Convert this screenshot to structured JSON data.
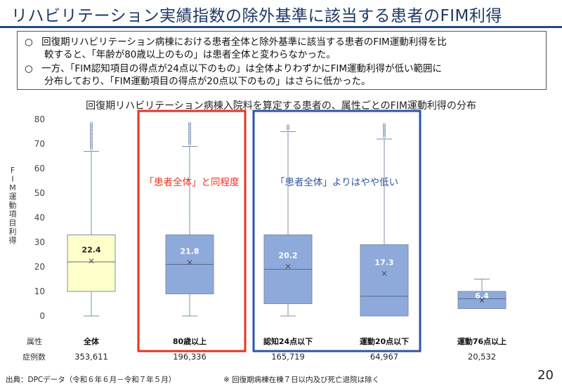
{
  "title": "リハビリテーション実績指数の除外基準に該当する患者のFIM利得",
  "summary": {
    "bullet": "○",
    "lines": [
      "回復期リハビリテーション病棟における患者全体と除外基準に該当する患者のFIM運動利得を比",
      "較すると、「年齢が80歳以上のもの」は患者全体と変わらなかった。",
      "一方、「FIM認知項目の得点が24点以下のもの」は全体よりわずかにFIM運動利得が低い範囲に",
      "分布しており、「FIM運動項目の得点が20点以下のもの」はさらに低かった。"
    ]
  },
  "chart_data": {
    "type": "box",
    "title": "回復期リハビリテーション病棟入院料を算定する患者の、属性ごとのFIM運動利得の分布",
    "ylabel": "FIM運動項目利得",
    "ylim": [
      -3,
      80
    ],
    "yticks": [
      0,
      10,
      20,
      30,
      40,
      50,
      60,
      70,
      80
    ],
    "grid": false,
    "row_labels": {
      "attribute": "属性",
      "cases": "症例数"
    },
    "categories": [
      "全体",
      "80歳以上",
      "認知24点以下",
      "運動20点以下",
      "運動76点以上"
    ],
    "cases": [
      "353,611",
      "196,336",
      "165,719",
      "64,967",
      "20,532"
    ],
    "boxes": [
      {
        "whisker_low": 0,
        "q1": 10,
        "median": 22,
        "q3": 33,
        "whisker_high": 67,
        "mean": 22.4,
        "mean_label": "22.4",
        "outliers": [
          68,
          79
        ]
      },
      {
        "whisker_low": 0,
        "q1": 9,
        "median": 21,
        "q3": 33,
        "whisker_high": 69,
        "mean": 21.8,
        "mean_label": "21.8",
        "outliers": [
          70,
          79
        ]
      },
      {
        "whisker_low": 0,
        "q1": 5,
        "median": 19,
        "q3": 33,
        "whisker_high": 75,
        "mean": 20.2,
        "mean_label": "20.2",
        "outliers": [
          76,
          78
        ]
      },
      {
        "whisker_low": 0,
        "q1": 0,
        "median": 8,
        "q3": 29,
        "whisker_high": 72,
        "mean": 17.3,
        "mean_label": "17.3",
        "outliers": [
          73,
          78
        ]
      },
      {
        "whisker_low": 3,
        "q1": 3,
        "median": 7,
        "q3": 10,
        "whisker_high": 15,
        "mean": 6.4,
        "mean_label": "6.4",
        "outliers": []
      }
    ],
    "box_colors": [
      "#ffffcc",
      "#8eaadb",
      "#8eaadb",
      "#8eaadb",
      "#8eaadb"
    ],
    "box_edge": "#7f8fa6",
    "highlights": [
      {
        "label": "「患者全体」と同程度",
        "color": "#e63322",
        "categories": [
          1
        ]
      },
      {
        "label": "「患者全体」よりはやや低い",
        "color": "#2e54a1",
        "categories": [
          2,
          3
        ]
      }
    ]
  },
  "footer": {
    "source": "出典：DPCデータ（令和６年６月－令和７年５月）",
    "note": "※ 回復期病棟在棟７日以内及び死亡退院は除く"
  },
  "page_number": "20"
}
